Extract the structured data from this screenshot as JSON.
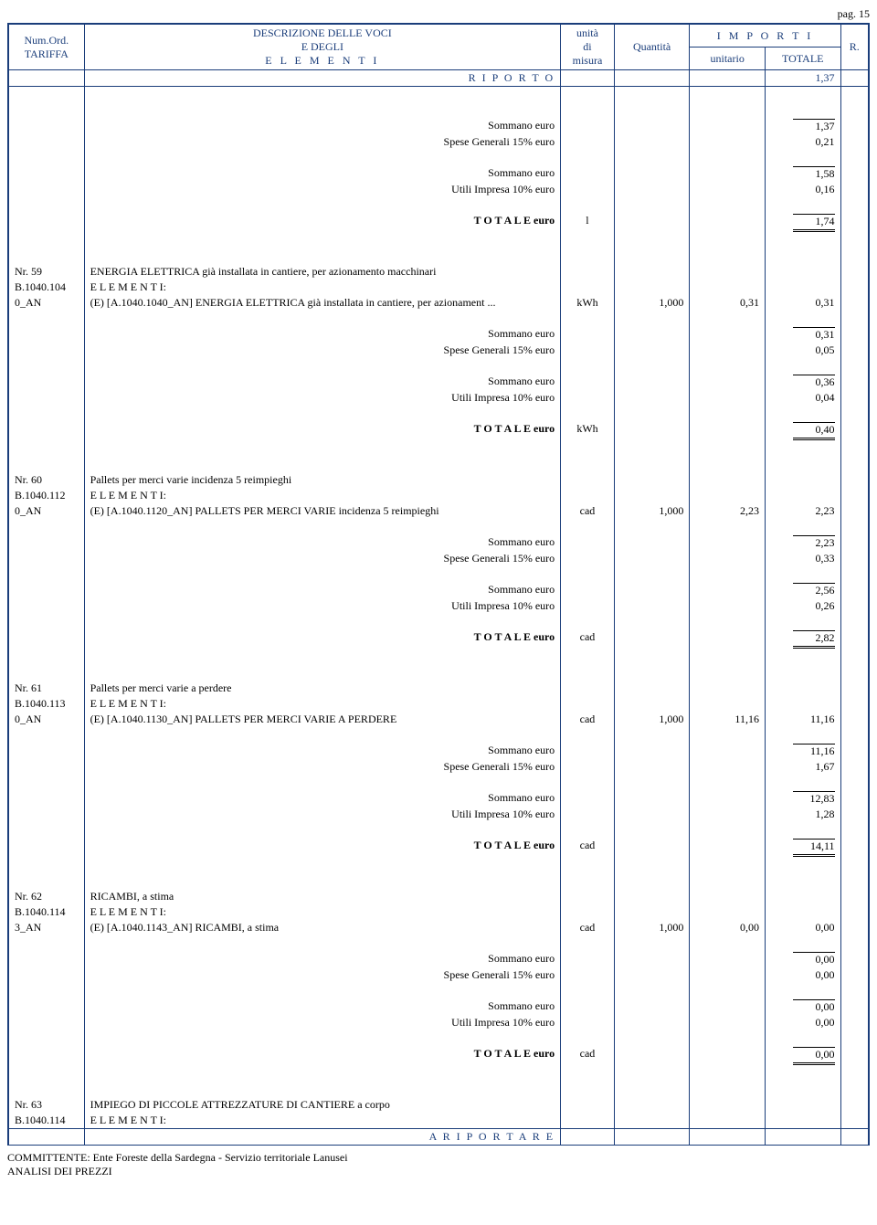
{
  "page_label": "pag. 15",
  "header": {
    "col1_line1": "Num.Ord.",
    "col1_line2": "TARIFFA",
    "col2_line1": "DESCRIZIONE DELLE VOCI",
    "col2_line2": "E DEGLI",
    "col2_line3": "E L E M E N T I",
    "col3_line1": "unità",
    "col3_line2": "di",
    "col3_line3": "misura",
    "col4": "Quantità",
    "col5_top": "I M P O R T I",
    "col5_unit": "unitario",
    "col5_tot": "TOTALE",
    "col6": "R."
  },
  "riporto_label": "R I P O R T O",
  "riporto_val": "1,37",
  "labels": {
    "sommano": "Sommano euro",
    "spese": "Spese Generali 15% euro",
    "utili": "Utili Impresa 10% euro",
    "totale": "T O T A L E  euro",
    "elementi": "E L E M E N T I:",
    "ariportare": "A   R I P O R T A R E"
  },
  "block0": {
    "sommano1": "1,37",
    "spese": "0,21",
    "sommano2": "1,58",
    "utili": "0,16",
    "tot_um": "l",
    "totale": "1,74"
  },
  "items": [
    {
      "nr": "Nr. 59",
      "code1": "B.1040.104",
      "code2": "0_AN",
      "title": "ENERGIA ELETTRICA già installata in cantiere, per azionamento macchinari",
      "elem_line": "(E) [A.1040.1040_AN] ENERGIA ELETTRICA già installata in cantiere, per azionament ...",
      "um": "kWh",
      "qty": "1,000",
      "unit": "0,31",
      "tot": "0,31",
      "sommano1": "0,31",
      "spese": "0,05",
      "sommano2": "0,36",
      "utili": "0,04",
      "tot_um": "kWh",
      "totale": "0,40"
    },
    {
      "nr": "Nr. 60",
      "code1": "B.1040.112",
      "code2": "0_AN",
      "title": "Pallets per merci varie incidenza 5 reimpieghi",
      "elem_line": "(E) [A.1040.1120_AN] PALLETS PER MERCI VARIE incidenza 5 reimpieghi",
      "um": "cad",
      "qty": "1,000",
      "unit": "2,23",
      "tot": "2,23",
      "sommano1": "2,23",
      "spese": "0,33",
      "sommano2": "2,56",
      "utili": "0,26",
      "tot_um": "cad",
      "totale": "2,82"
    },
    {
      "nr": "Nr. 61",
      "code1": "B.1040.113",
      "code2": "0_AN",
      "title": "Pallets per merci varie a perdere",
      "elem_line": "(E) [A.1040.1130_AN] PALLETS PER MERCI VARIE A PERDERE",
      "um": "cad",
      "qty": "1,000",
      "unit": "11,16",
      "tot": "11,16",
      "sommano1": "11,16",
      "spese": "1,67",
      "sommano2": "12,83",
      "utili": "1,28",
      "tot_um": "cad",
      "totale": "14,11"
    },
    {
      "nr": "Nr. 62",
      "code1": "B.1040.114",
      "code2": "3_AN",
      "title": "RICAMBI, a stima",
      "elem_line": "(E) [A.1040.1143_AN] RICAMBI, a stima",
      "um": "cad",
      "qty": "1,000",
      "unit": "0,00",
      "tot": "0,00",
      "sommano1": "0,00",
      "spese": "0,00",
      "sommano2": "0,00",
      "utili": "0,00",
      "tot_um": "cad",
      "totale": "0,00"
    }
  ],
  "tail": {
    "nr": "Nr. 63",
    "code1": "B.1040.114",
    "title": "IMPIEGO DI PICCOLE ATTREZZATURE DI CANTIERE a corpo"
  },
  "footer_line1": "COMMITTENTE: Ente Foreste della Sardegna - Servizio territoriale Lanusei",
  "footer_line2": "ANALISI DEI PREZZI",
  "colors": {
    "border": "#1a3d7a",
    "text": "#000000"
  }
}
